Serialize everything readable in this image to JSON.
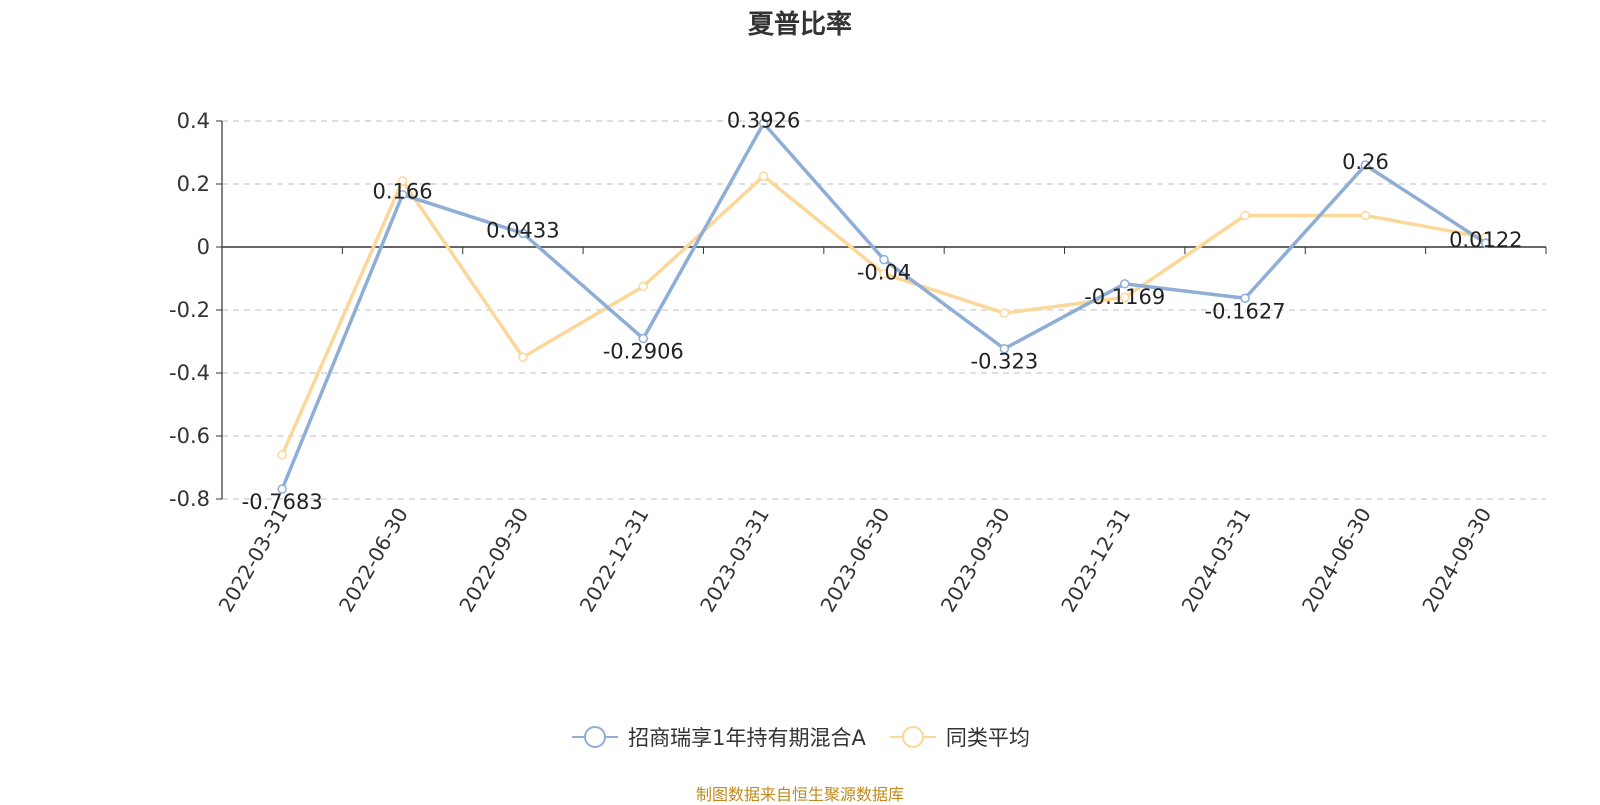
{
  "chart_data": {
    "type": "line",
    "title": "夏普比率",
    "categories": [
      "2022-03-31",
      "2022-06-30",
      "2022-09-30",
      "2022-12-31",
      "2023-03-31",
      "2023-06-30",
      "2023-09-30",
      "2023-12-31",
      "2024-03-31",
      "2024-06-30",
      "2024-09-30"
    ],
    "ylim": [
      -0.8,
      0.4
    ],
    "yticks": [
      "0.4",
      "0.2",
      "0",
      "-0.2",
      "-0.4",
      "-0.6",
      "-0.8"
    ],
    "ytick_values": [
      0.4,
      0.2,
      0,
      -0.2,
      -0.4,
      -0.6,
      -0.8
    ],
    "grid": true,
    "legend_position": "bottom",
    "series": [
      {
        "name": "招商瑞享1年持有期混合A",
        "color": "#8eaed8",
        "values": [
          -0.7683,
          0.166,
          0.0433,
          -0.2906,
          0.3926,
          -0.04,
          -0.323,
          -0.1169,
          -0.1627,
          0.26,
          0.0122
        ],
        "labels": [
          "-0.7683",
          "0.166",
          "0.0433",
          "-0.2906",
          "0.3926",
          "-0.04",
          "-0.323",
          "-0.1169",
          "-0.1627",
          "0.26",
          "0.0122"
        ]
      },
      {
        "name": "同类平均",
        "color": "#fbd89a",
        "values": [
          -0.66,
          0.21,
          -0.35,
          -0.125,
          0.225,
          -0.085,
          -0.21,
          -0.16,
          0.1,
          0.1,
          0.03
        ]
      }
    ]
  },
  "source_note": "制图数据来自恒生聚源数据库"
}
